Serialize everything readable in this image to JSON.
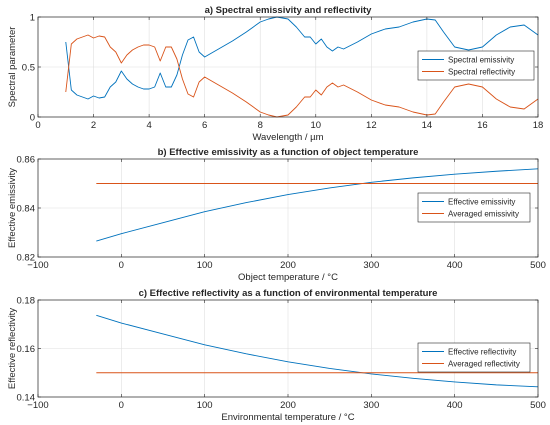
{
  "colors": {
    "blue": "#0072BD",
    "orange": "#D95319"
  },
  "chart_data": [
    {
      "type": "line",
      "title": "a) Spectral emissivity and reflectivity",
      "xlabel": "Wavelength / µm",
      "ylabel": "Spectral parameter",
      "xlim": [
        0,
        18
      ],
      "ylim": [
        0,
        1
      ],
      "xticks": [
        0,
        2,
        4,
        6,
        8,
        10,
        12,
        14,
        16,
        18
      ],
      "yticks": [
        0,
        0.5,
        1
      ],
      "xticklabels": [
        "0",
        "2",
        "4",
        "6",
        "8",
        "10",
        "12",
        "14",
        "16",
        "18"
      ],
      "yticklabels": [
        "0",
        "0.5",
        "1"
      ],
      "grid": true,
      "legend": "right",
      "x": [
        1.0,
        1.2,
        1.4,
        1.6,
        1.8,
        2.0,
        2.2,
        2.4,
        2.6,
        2.8,
        3.0,
        3.2,
        3.4,
        3.6,
        3.8,
        4.0,
        4.2,
        4.4,
        4.6,
        4.8,
        5.0,
        5.2,
        5.4,
        5.6,
        5.8,
        6.0,
        6.5,
        7.0,
        7.5,
        8.0,
        8.3,
        8.6,
        9.0,
        9.3,
        9.6,
        9.8,
        10.0,
        10.2,
        10.4,
        10.6,
        10.8,
        11.0,
        11.5,
        12.0,
        12.5,
        13.0,
        13.5,
        14.0,
        14.3,
        14.6,
        15.0,
        15.5,
        16.0,
        16.5,
        17.0,
        17.5,
        18.0
      ],
      "series": [
        {
          "name": "Spectral emissivity",
          "color": "#0072BD",
          "values": [
            0.75,
            0.27,
            0.22,
            0.2,
            0.18,
            0.21,
            0.19,
            0.2,
            0.3,
            0.35,
            0.46,
            0.38,
            0.33,
            0.3,
            0.28,
            0.28,
            0.3,
            0.44,
            0.3,
            0.3,
            0.42,
            0.62,
            0.77,
            0.8,
            0.65,
            0.6,
            0.68,
            0.76,
            0.85,
            0.95,
            0.98,
            1.0,
            0.98,
            0.9,
            0.8,
            0.8,
            0.73,
            0.78,
            0.7,
            0.66,
            0.7,
            0.68,
            0.75,
            0.83,
            0.88,
            0.9,
            0.95,
            0.98,
            0.97,
            0.85,
            0.7,
            0.67,
            0.7,
            0.82,
            0.9,
            0.92,
            0.82
          ]
        },
        {
          "name": "Spectral reflectivity",
          "color": "#D95319",
          "values": [
            0.25,
            0.73,
            0.78,
            0.8,
            0.82,
            0.79,
            0.81,
            0.8,
            0.7,
            0.65,
            0.54,
            0.62,
            0.67,
            0.7,
            0.72,
            0.72,
            0.7,
            0.56,
            0.7,
            0.7,
            0.58,
            0.38,
            0.23,
            0.2,
            0.35,
            0.4,
            0.32,
            0.24,
            0.15,
            0.05,
            0.02,
            0.0,
            0.02,
            0.1,
            0.2,
            0.2,
            0.27,
            0.22,
            0.3,
            0.34,
            0.3,
            0.32,
            0.25,
            0.17,
            0.12,
            0.1,
            0.05,
            0.02,
            0.03,
            0.15,
            0.3,
            0.33,
            0.3,
            0.18,
            0.1,
            0.08,
            0.18
          ]
        }
      ]
    },
    {
      "type": "line",
      "title": "b) Effective emissivity as a function of object temperature",
      "xlabel": "Object temperature / °C",
      "ylabel": "Effective emissivity",
      "xlim": [
        -100,
        500
      ],
      "ylim": [
        0.82,
        0.86
      ],
      "xticks": [
        -100,
        0,
        100,
        200,
        300,
        400,
        500
      ],
      "yticks": [
        0.82,
        0.84,
        0.86
      ],
      "xticklabels": [
        "−100",
        "0",
        "100",
        "200",
        "300",
        "400",
        "500"
      ],
      "yticklabels": [
        "0.82",
        "0.84",
        "0.86"
      ],
      "grid": true,
      "legend": "right",
      "x": [
        -30,
        0,
        50,
        100,
        150,
        200,
        250,
        300,
        350,
        400,
        450,
        500
      ],
      "series": [
        {
          "name": "Effective emissivity",
          "color": "#0072BD",
          "values": [
            0.8265,
            0.8295,
            0.834,
            0.8385,
            0.8422,
            0.8455,
            0.8482,
            0.8505,
            0.8523,
            0.8538,
            0.855,
            0.856
          ]
        },
        {
          "name": "Averaged emissivity",
          "color": "#D95319",
          "values": [
            0.85,
            0.85,
            0.85,
            0.85,
            0.85,
            0.85,
            0.85,
            0.85,
            0.85,
            0.85,
            0.85,
            0.85
          ]
        }
      ]
    },
    {
      "type": "line",
      "title": "c) Effective reflectivity as a function of environmental temperature",
      "xlabel": "Environmental temperature / °C",
      "ylabel": "Effective reflectivity",
      "xlim": [
        -100,
        500
      ],
      "ylim": [
        0.14,
        0.18
      ],
      "xticks": [
        -100,
        0,
        100,
        200,
        300,
        400,
        500
      ],
      "yticks": [
        0.14,
        0.16,
        0.18
      ],
      "xticklabels": [
        "−100",
        "0",
        "100",
        "200",
        "300",
        "400",
        "500"
      ],
      "yticklabels": [
        "0.14",
        "0.16",
        "0.18"
      ],
      "grid": true,
      "legend": "right",
      "x": [
        -30,
        0,
        50,
        100,
        150,
        200,
        250,
        300,
        350,
        400,
        450,
        500
      ],
      "series": [
        {
          "name": "Effective reflectivity",
          "color": "#0072BD",
          "values": [
            0.1737,
            0.1705,
            0.166,
            0.1615,
            0.1578,
            0.1545,
            0.1518,
            0.1495,
            0.1477,
            0.1462,
            0.145,
            0.1442
          ]
        },
        {
          "name": "Averaged reflectivity",
          "color": "#D95319",
          "values": [
            0.15,
            0.15,
            0.15,
            0.15,
            0.15,
            0.15,
            0.15,
            0.15,
            0.15,
            0.15,
            0.15,
            0.15
          ]
        }
      ]
    }
  ]
}
